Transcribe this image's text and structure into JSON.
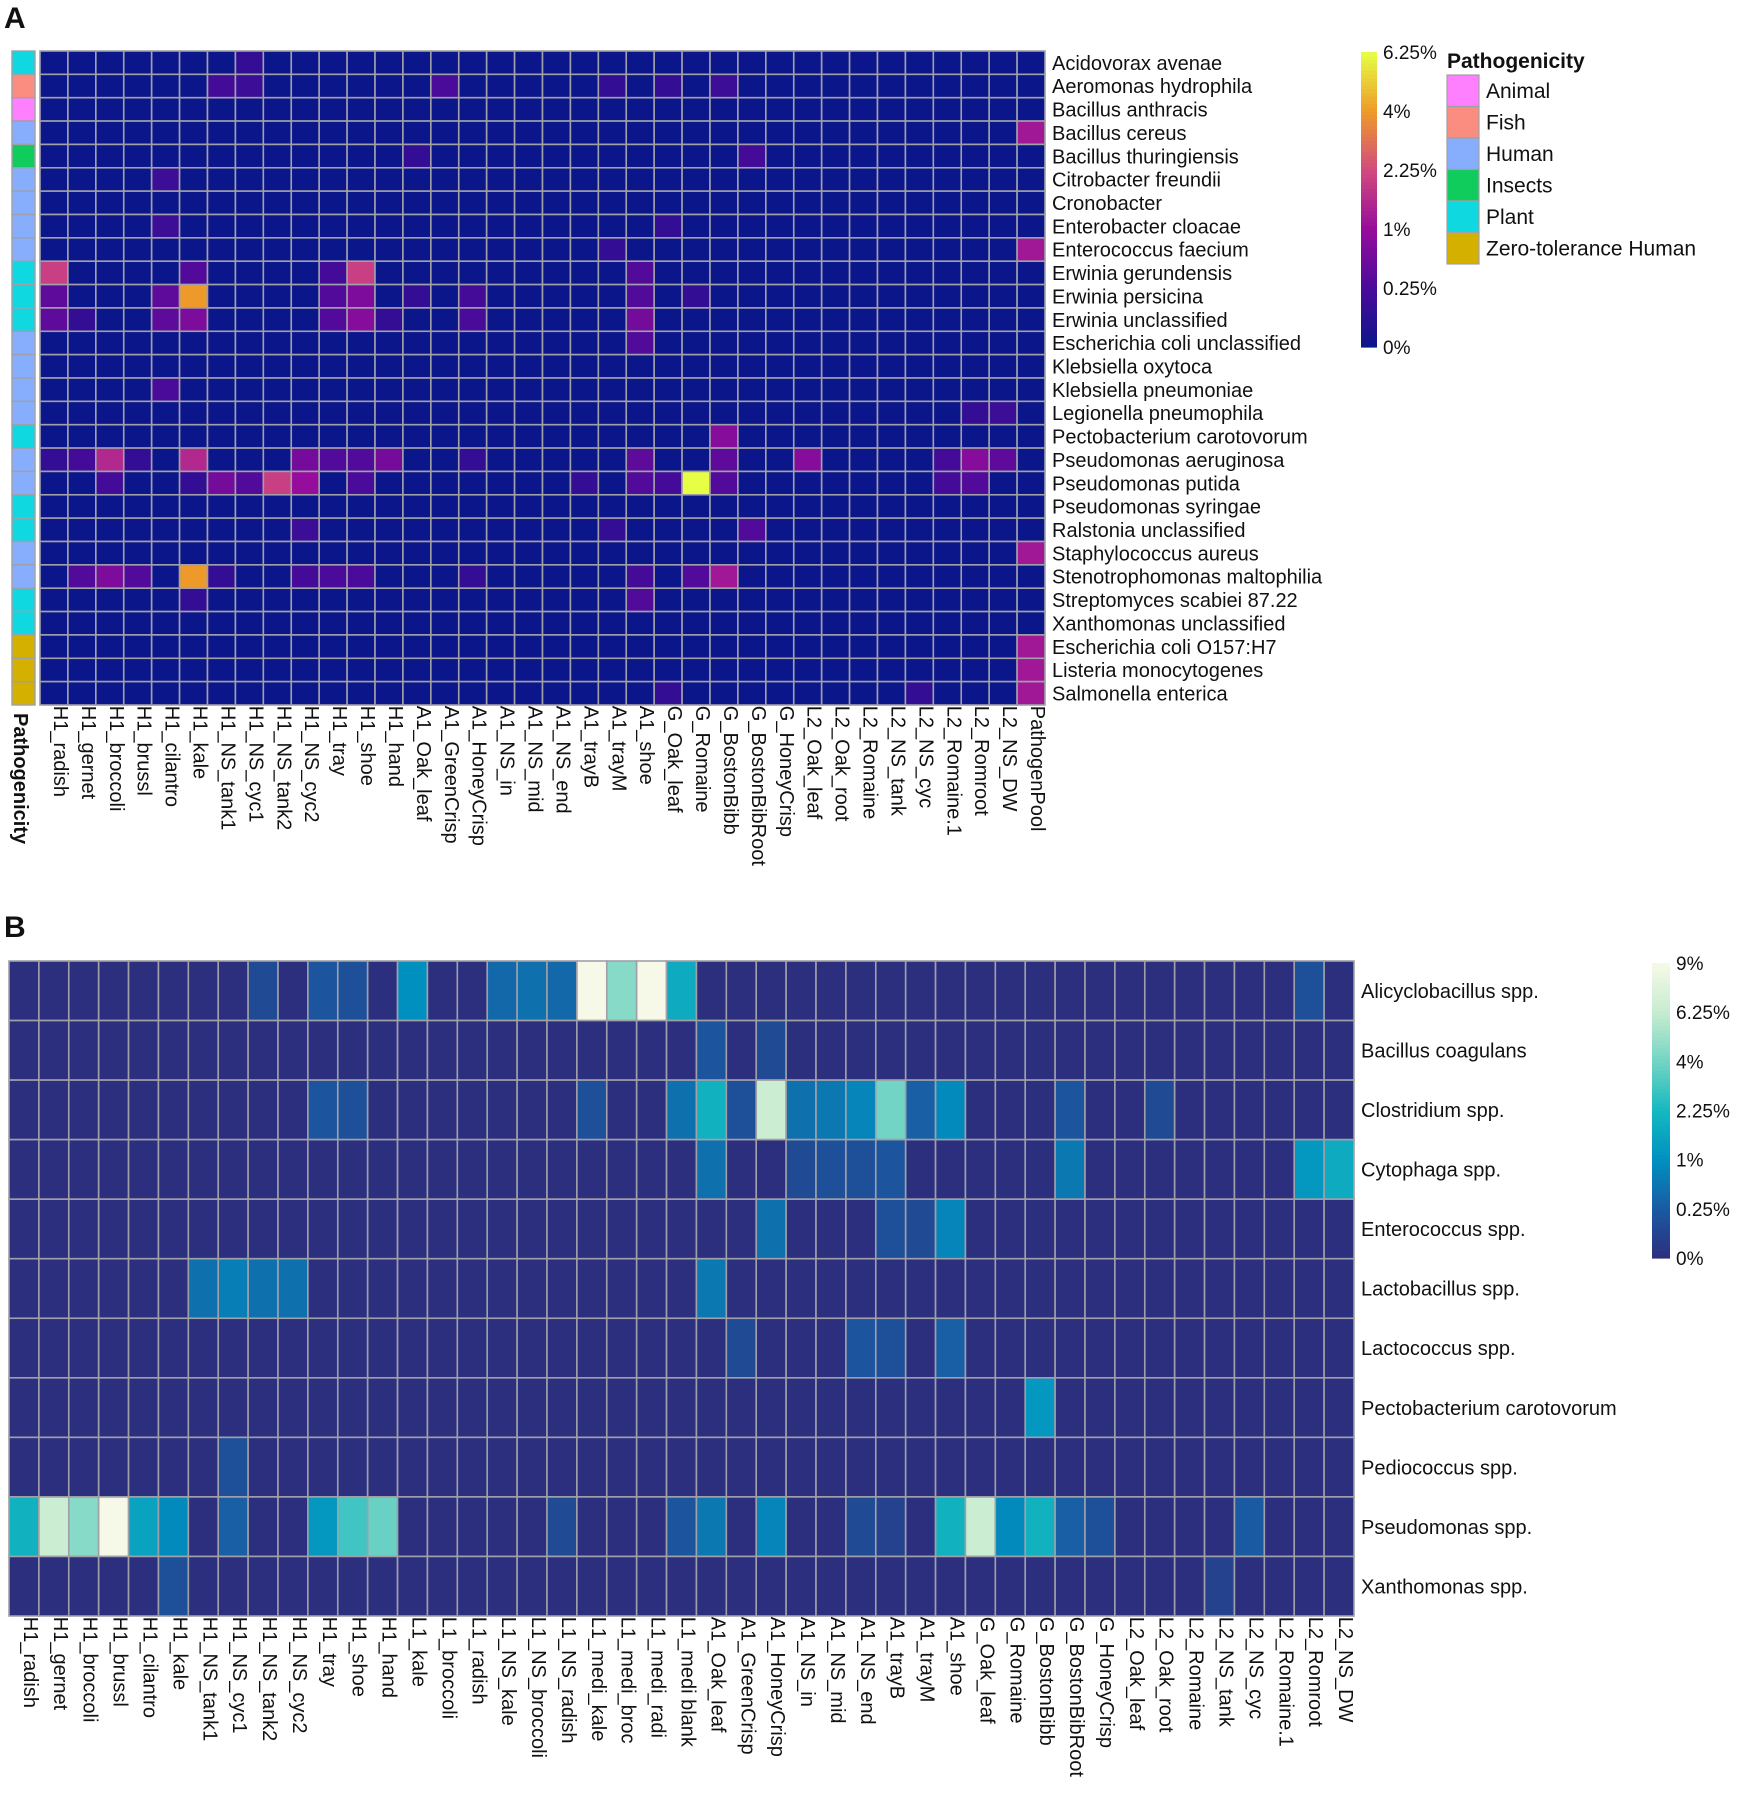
{
  "chart_data": [
    {
      "panel": "A",
      "type": "heatmap",
      "scale": "sqrt",
      "value_unit": "%",
      "colorbar": {
        "ticks": [
          "0%",
          "0.25%",
          "1%",
          "2.25%",
          "4%",
          "6.25%"
        ],
        "tick_values": [
          0,
          0.25,
          1,
          2.25,
          4,
          6.25
        ],
        "max": 6.25,
        "colors": [
          "#0b168a",
          "#4a0a9a",
          "#960c9c",
          "#d24a7e",
          "#ee9a2a",
          "#e6ff44"
        ]
      },
      "columns": [
        "H1_radish",
        "H1_gernet",
        "H1_broccoli",
        "H1_brussl",
        "H1_cilantro",
        "H1_kale",
        "H1_NS_tank1",
        "H1_NS_cyc1",
        "H1_NS_tank2",
        "H1_NS_cyc2",
        "H1_tray",
        "H1_shoe",
        "H1_hand",
        "A1_Oak_leaf",
        "A1_GreenCrisp",
        "A1_HoneyCrisp",
        "A1_NS_in",
        "A1_NS_mid",
        "A1_NS_end",
        "A1_trayB",
        "A1_trayM",
        "A1_shoe",
        "G_Oak_leaf",
        "G_Romaine",
        "G_BostonBibb",
        "G_BostonBibRoot",
        "G_HoneyCrisp",
        "L2_Oak_leaf",
        "L2_Oak_root",
        "L2_Romaine",
        "L2_NS_tank",
        "L2_NS_cyc",
        "L2_Romaine.1",
        "L2_Romroot",
        "L2_NS_DW",
        "PathogenPool"
      ],
      "rows": [
        "Acidovorax avenae",
        "Aeromonas hydrophila",
        "Bacillus anthracis",
        "Bacillus cereus",
        "Bacillus thuringiensis",
        "Citrobacter freundii",
        "Cronobacter",
        "Enterobacter cloacae",
        "Enterococcus faecium",
        "Erwinia gerundensis",
        "Erwinia persicina",
        "Erwinia unclassified",
        "Escherichia coli unclassified",
        "Klebsiella oxytoca",
        "Klebsiella pneumoniae",
        "Legionella pneumophila",
        "Pectobacterium carotovorum",
        "Pseudomonas aeruginosa",
        "Pseudomonas putida",
        "Pseudomonas syringae",
        "Ralstonia unclassified",
        "Staphylococcus aureus",
        "Stenotrophomonas maltophilia",
        "Streptomyces scabiei 87.22",
        "Xanthomonas unclassified",
        "Escherichia coli O157:H7",
        "Listeria monocytogenes",
        "Salmonella enterica"
      ],
      "row_pathogenicity": [
        "Plant",
        "Fish",
        "Animal",
        "Human",
        "Insects",
        "Human",
        "Human",
        "Human",
        "Human",
        "Plant",
        "Plant",
        "Plant",
        "Human",
        "Human",
        "Human",
        "Human",
        "Plant",
        "Human",
        "Human",
        "Plant",
        "Plant",
        "Human",
        "Human",
        "Plant",
        "Plant",
        "Zero-tolerance Human",
        "Zero-tolerance Human",
        "Zero-tolerance Human"
      ],
      "annotation_title": "Pathogenicity",
      "annotation_legend": [
        {
          "label": "Animal",
          "color": "#ff80ff"
        },
        {
          "label": "Fish",
          "color": "#fa8c80"
        },
        {
          "label": "Human",
          "color": "#86aefc"
        },
        {
          "label": "Insects",
          "color": "#10cc5c"
        },
        {
          "label": "Plant",
          "color": "#10d8e0"
        },
        {
          "label": "Zero-tolerance Human",
          "color": "#d4b000"
        }
      ],
      "default_value": 0,
      "cells": [
        [
          0,
          7,
          0.1
        ],
        [
          1,
          6,
          0.2
        ],
        [
          1,
          7,
          0.15
        ],
        [
          1,
          14,
          0.25
        ],
        [
          1,
          20,
          0.1
        ],
        [
          1,
          22,
          0.1
        ],
        [
          1,
          24,
          0.15
        ],
        [
          3,
          35,
          1.2
        ],
        [
          4,
          13,
          0.1
        ],
        [
          4,
          25,
          0.2
        ],
        [
          5,
          4,
          0.15
        ],
        [
          7,
          4,
          0.15
        ],
        [
          7,
          22,
          0.1
        ],
        [
          8,
          20,
          0.1
        ],
        [
          8,
          35,
          1.2
        ],
        [
          9,
          0,
          2
        ],
        [
          9,
          5,
          0.3
        ],
        [
          9,
          10,
          0.2
        ],
        [
          9,
          11,
          2
        ],
        [
          9,
          21,
          0.3
        ],
        [
          10,
          0,
          0.4
        ],
        [
          10,
          4,
          0.4
        ],
        [
          10,
          5,
          4
        ],
        [
          10,
          10,
          0.3
        ],
        [
          10,
          11,
          0.7
        ],
        [
          10,
          13,
          0.1
        ],
        [
          10,
          15,
          0.2
        ],
        [
          10,
          21,
          0.3
        ],
        [
          10,
          23,
          0.1
        ],
        [
          11,
          0,
          0.4
        ],
        [
          11,
          1,
          0.1
        ],
        [
          11,
          4,
          0.4
        ],
        [
          11,
          5,
          0.7
        ],
        [
          11,
          10,
          0.3
        ],
        [
          11,
          11,
          0.8
        ],
        [
          11,
          12,
          0.1
        ],
        [
          11,
          15,
          0.25
        ],
        [
          11,
          21,
          0.6
        ],
        [
          12,
          21,
          0.3
        ],
        [
          14,
          4,
          0.25
        ],
        [
          15,
          33,
          0.1
        ],
        [
          15,
          34,
          0.15
        ],
        [
          16,
          24,
          0.8
        ],
        [
          17,
          0,
          0.1
        ],
        [
          17,
          1,
          0.2
        ],
        [
          17,
          2,
          1.5
        ],
        [
          17,
          3,
          0.1
        ],
        [
          17,
          5,
          1.5
        ],
        [
          17,
          9,
          0.6
        ],
        [
          17,
          10,
          0.3
        ],
        [
          17,
          11,
          0.3
        ],
        [
          17,
          12,
          0.6
        ],
        [
          17,
          15,
          0.1
        ],
        [
          17,
          21,
          0.4
        ],
        [
          17,
          24,
          0.4
        ],
        [
          17,
          27,
          0.8
        ],
        [
          17,
          32,
          0.2
        ],
        [
          17,
          33,
          0.8
        ],
        [
          17,
          34,
          0.4
        ],
        [
          18,
          2,
          0.2
        ],
        [
          18,
          5,
          0.1
        ],
        [
          18,
          6,
          0.6
        ],
        [
          18,
          7,
          0.3
        ],
        [
          18,
          8,
          2
        ],
        [
          18,
          9,
          1
        ],
        [
          18,
          11,
          0.25
        ],
        [
          18,
          19,
          0.1
        ],
        [
          18,
          21,
          0.3
        ],
        [
          18,
          22,
          0.2
        ],
        [
          18,
          23,
          6.25
        ],
        [
          18,
          24,
          0.3
        ],
        [
          18,
          32,
          0.2
        ],
        [
          18,
          33,
          0.3
        ],
        [
          20,
          9,
          0.15
        ],
        [
          20,
          20,
          0.1
        ],
        [
          20,
          25,
          0.3
        ],
        [
          21,
          35,
          1.2
        ],
        [
          22,
          1,
          0.3
        ],
        [
          22,
          2,
          0.7
        ],
        [
          22,
          3,
          0.3
        ],
        [
          22,
          5,
          4
        ],
        [
          22,
          6,
          0.1
        ],
        [
          22,
          9,
          0.2
        ],
        [
          22,
          10,
          0.25
        ],
        [
          22,
          11,
          0.25
        ],
        [
          22,
          15,
          0.1
        ],
        [
          22,
          21,
          0.2
        ],
        [
          22,
          23,
          0.3
        ],
        [
          22,
          24,
          1.2
        ],
        [
          23,
          5,
          0.1
        ],
        [
          23,
          21,
          0.3
        ],
        [
          25,
          35,
          1.2
        ],
        [
          26,
          35,
          1.2
        ],
        [
          27,
          22,
          0.1
        ],
        [
          27,
          31,
          0.1
        ],
        [
          27,
          35,
          1.2
        ]
      ]
    },
    {
      "panel": "B",
      "type": "heatmap",
      "scale": "sqrt",
      "value_unit": "%",
      "colorbar": {
        "ticks": [
          "0%",
          "0.25%",
          "1%",
          "2.25%",
          "4%",
          "6.25%",
          "9%"
        ],
        "tick_values": [
          0,
          0.25,
          1,
          2.25,
          4,
          6.25,
          9
        ],
        "max": 9,
        "colors": [
          "#2c2f7e",
          "#1a5aa2",
          "#0090c0",
          "#14b8c0",
          "#72d4c4",
          "#c6ecd0",
          "#f6f9e8"
        ]
      },
      "columns": [
        "H1_radish",
        "H1_gernet",
        "H1_broccoli",
        "H1_brussl",
        "H1_cilantro",
        "H1_kale",
        "H1_NS_tank1",
        "H1_NS_cyc1",
        "H1_NS_tank2",
        "H1_NS_cyc2",
        "H1_tray",
        "H1_shoe",
        "H1_hand",
        "L1_kale",
        "L1_broccoli",
        "L1_radish",
        "L1_NS_kale",
        "L1_NS_broccoli",
        "L1_NS_radish",
        "L1_medi_kale",
        "L1_medi_broc",
        "L1_medi_radi",
        "L1_medi blank",
        "A1_Oak_leaf",
        "A1_GreenCrisp",
        "A1_HoneyCrisp",
        "A1_NS_in",
        "A1_NS_mid",
        "A1_NS_end",
        "A1_trayB",
        "A1_trayM",
        "A1_shoe",
        "G_Oak_leaf",
        "G_Romaine",
        "G_BostonBibb",
        "G_BostonBibRoot",
        "G_HoneyCrisp",
        "L2_Oak_leaf",
        "L2_Oak_root",
        "L2_Romaine",
        "L2_NS_tank",
        "L2_NS_cyc",
        "L2_Romaine.1",
        "L2_Romroot",
        "L2_NS_DW"
      ],
      "rows": [
        "Alicyclobacillus spp.",
        "Bacillus coagulans",
        "Clostridium spp.",
        "Cytophaga spp.",
        "Enterococcus spp.",
        "Lactobacillus spp.",
        "Lactococcus spp.",
        "Pectobacterium carotovorum",
        "Pediococcus spp.",
        "Pseudomonas spp.",
        "Xanthomonas spp."
      ],
      "default_value": 0,
      "cells": [
        [
          0,
          8,
          0.1
        ],
        [
          0,
          10,
          0.2
        ],
        [
          0,
          11,
          0.15
        ],
        [
          0,
          13,
          1
        ],
        [
          0,
          16,
          0.4
        ],
        [
          0,
          17,
          0.5
        ],
        [
          0,
          18,
          0.4
        ],
        [
          0,
          19,
          9
        ],
        [
          0,
          20,
          4.5
        ],
        [
          0,
          21,
          9
        ],
        [
          0,
          22,
          1.8
        ],
        [
          0,
          43,
          0.15
        ],
        [
          1,
          23,
          0.2
        ],
        [
          1,
          25,
          0.1
        ],
        [
          2,
          10,
          0.2
        ],
        [
          2,
          11,
          0.15
        ],
        [
          2,
          19,
          0.15
        ],
        [
          2,
          22,
          0.5
        ],
        [
          2,
          23,
          2
        ],
        [
          2,
          24,
          0.15
        ],
        [
          2,
          25,
          6.5
        ],
        [
          2,
          26,
          0.5
        ],
        [
          2,
          27,
          0.6
        ],
        [
          2,
          28,
          0.8
        ],
        [
          2,
          29,
          4
        ],
        [
          2,
          30,
          0.3
        ],
        [
          2,
          31,
          0.9
        ],
        [
          2,
          35,
          0.2
        ],
        [
          2,
          38,
          0.1
        ],
        [
          3,
          23,
          0.5
        ],
        [
          3,
          26,
          0.1
        ],
        [
          3,
          27,
          0.15
        ],
        [
          3,
          28,
          0.15
        ],
        [
          3,
          29,
          0.2
        ],
        [
          3,
          35,
          0.6
        ],
        [
          3,
          43,
          1.2
        ],
        [
          3,
          44,
          1.8
        ],
        [
          4,
          25,
          0.5
        ],
        [
          4,
          29,
          0.15
        ],
        [
          4,
          30,
          0.1
        ],
        [
          4,
          31,
          0.8
        ],
        [
          5,
          6,
          0.5
        ],
        [
          5,
          7,
          0.7
        ],
        [
          5,
          8,
          0.5
        ],
        [
          5,
          9,
          0.5
        ],
        [
          5,
          23,
          0.6
        ],
        [
          6,
          24,
          0.1
        ],
        [
          6,
          28,
          0.2
        ],
        [
          6,
          29,
          0.15
        ],
        [
          6,
          31,
          0.3
        ],
        [
          7,
          34,
          1.2
        ],
        [
          8,
          7,
          0.15
        ],
        [
          9,
          0,
          2
        ],
        [
          9,
          1,
          6.5
        ],
        [
          9,
          2,
          4.5
        ],
        [
          9,
          3,
          9
        ],
        [
          9,
          4,
          1.5
        ],
        [
          9,
          5,
          0.9
        ],
        [
          9,
          7,
          0.3
        ],
        [
          9,
          10,
          1.2
        ],
        [
          9,
          11,
          3
        ],
        [
          9,
          12,
          3.8
        ],
        [
          9,
          18,
          0.1
        ],
        [
          9,
          22,
          0.2
        ],
        [
          9,
          23,
          0.6
        ],
        [
          9,
          25,
          0.8
        ],
        [
          9,
          28,
          0.1
        ],
        [
          9,
          29,
          0.05
        ],
        [
          9,
          31,
          2
        ],
        [
          9,
          32,
          6.5
        ],
        [
          9,
          33,
          0.9
        ],
        [
          9,
          34,
          2
        ],
        [
          9,
          35,
          0.3
        ],
        [
          9,
          36,
          0.15
        ],
        [
          9,
          41,
          0.25
        ],
        [
          10,
          5,
          0.15
        ],
        [
          10,
          40,
          0.05
        ]
      ]
    }
  ],
  "panel_labels": [
    "A",
    "B"
  ]
}
